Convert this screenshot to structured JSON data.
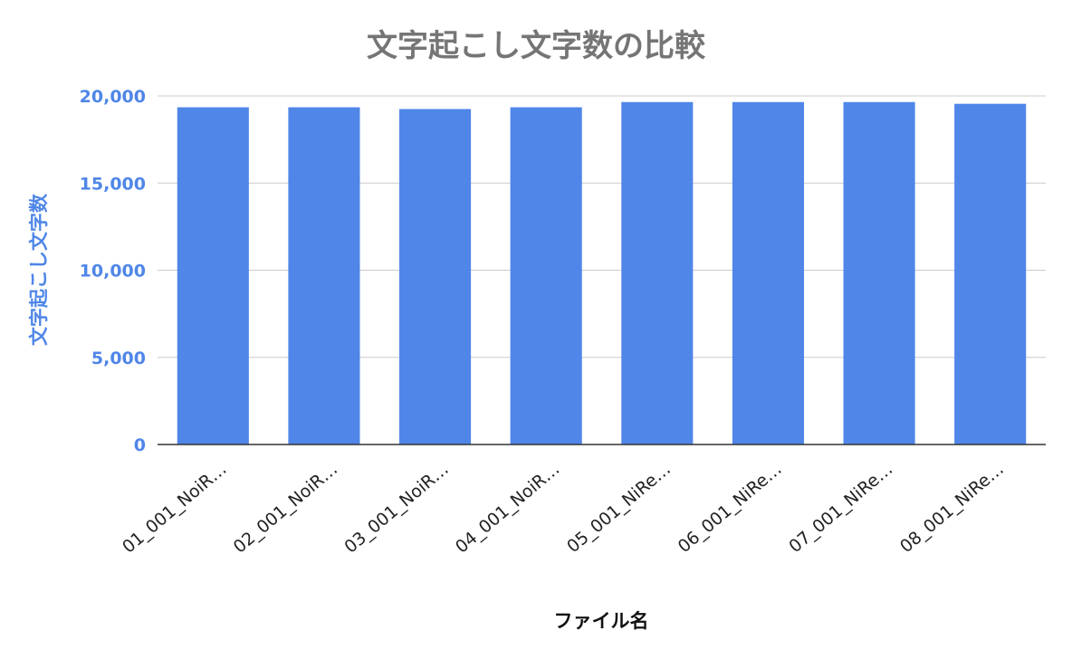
{
  "chart_data": {
    "type": "bar",
    "title": "文字起こし文字数の比較",
    "xlabel": "ファイル名",
    "ylabel": "文字起こし文字数",
    "categories": [
      "01_001_NoiR…",
      "02_001_NoiR…",
      "03_001_NoiR…",
      "04_001_NoiR…",
      "05_001_NiRe…",
      "06_001_NiRe…",
      "07_001_NiRe…",
      "08_001_NiRe…"
    ],
    "values": [
      19350,
      19350,
      19250,
      19350,
      19650,
      19650,
      19650,
      19550
    ],
    "ylim": [
      0,
      20000
    ],
    "yticks": [
      0,
      5000,
      10000,
      15000,
      20000
    ],
    "ytick_labels": [
      "0",
      "5,000",
      "10,000",
      "15,000",
      "20,000"
    ],
    "grid": true,
    "legend": "none",
    "colors": {
      "bar": "#4f86e8",
      "title": "#757575",
      "axis_label": "#4f86e8"
    }
  }
}
